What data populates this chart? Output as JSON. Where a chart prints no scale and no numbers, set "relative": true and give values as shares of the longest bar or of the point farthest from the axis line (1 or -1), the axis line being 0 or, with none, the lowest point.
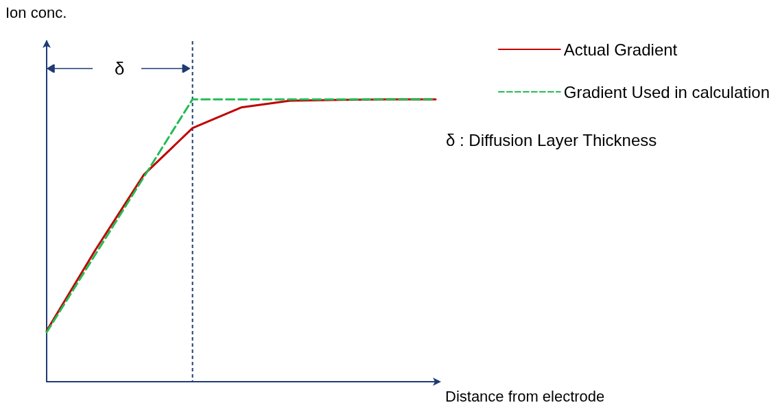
{
  "chart_data": {
    "type": "line",
    "relative": true,
    "xlabel": "Distance from electrode",
    "legend": "top right",
    "annotations": [
      "Ion conc.",
      "δ",
      "δ : Diffusion Layer Thickness"
    ],
    "categories": [
      null,
      null,
      null,
      null,
      null,
      null,
      null,
      null,
      null
    ],
    "series": [
      {
        "name": "Actual Gradient",
        "color": "#c00000",
        "line_style": "solid",
        "values": [
          0.18,
          0.466,
          0.733,
          0.898,
          0.971,
          0.995,
          0.998,
          1,
          1
        ]
      },
      {
        "name": "Gradient Used in calculation",
        "color": "#22bb55",
        "line_style": "dashed",
        "values": [
          0.175,
          0.45,
          0.725,
          1,
          1,
          1,
          1,
          1,
          1
        ]
      }
    ]
  }
}
